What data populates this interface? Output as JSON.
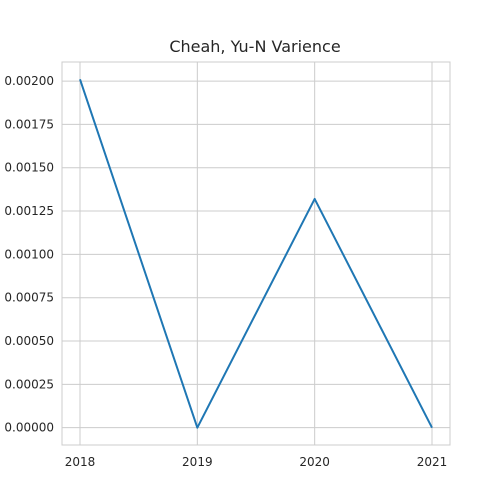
{
  "chart_data": {
    "type": "line",
    "title": "Cheah, Yu-N Varience",
    "xlabel": "",
    "ylabel": "",
    "x": [
      "2018",
      "2019",
      "2020",
      "2021"
    ],
    "series": [
      {
        "values": [
          0.00201,
          0.0,
          0.00132,
          0.0
        ]
      }
    ],
    "x_ticks": [
      "2018",
      "2019",
      "2020",
      "2021"
    ],
    "y_ticks": [
      "0.00000",
      "0.00025",
      "0.00050",
      "0.00075",
      "0.00100",
      "0.00125",
      "0.00150",
      "0.00175",
      "0.00200"
    ],
    "ylim": [
      -0.0001,
      0.00211
    ],
    "grid": true,
    "legend": "none",
    "line_color": "#1f77b4"
  }
}
